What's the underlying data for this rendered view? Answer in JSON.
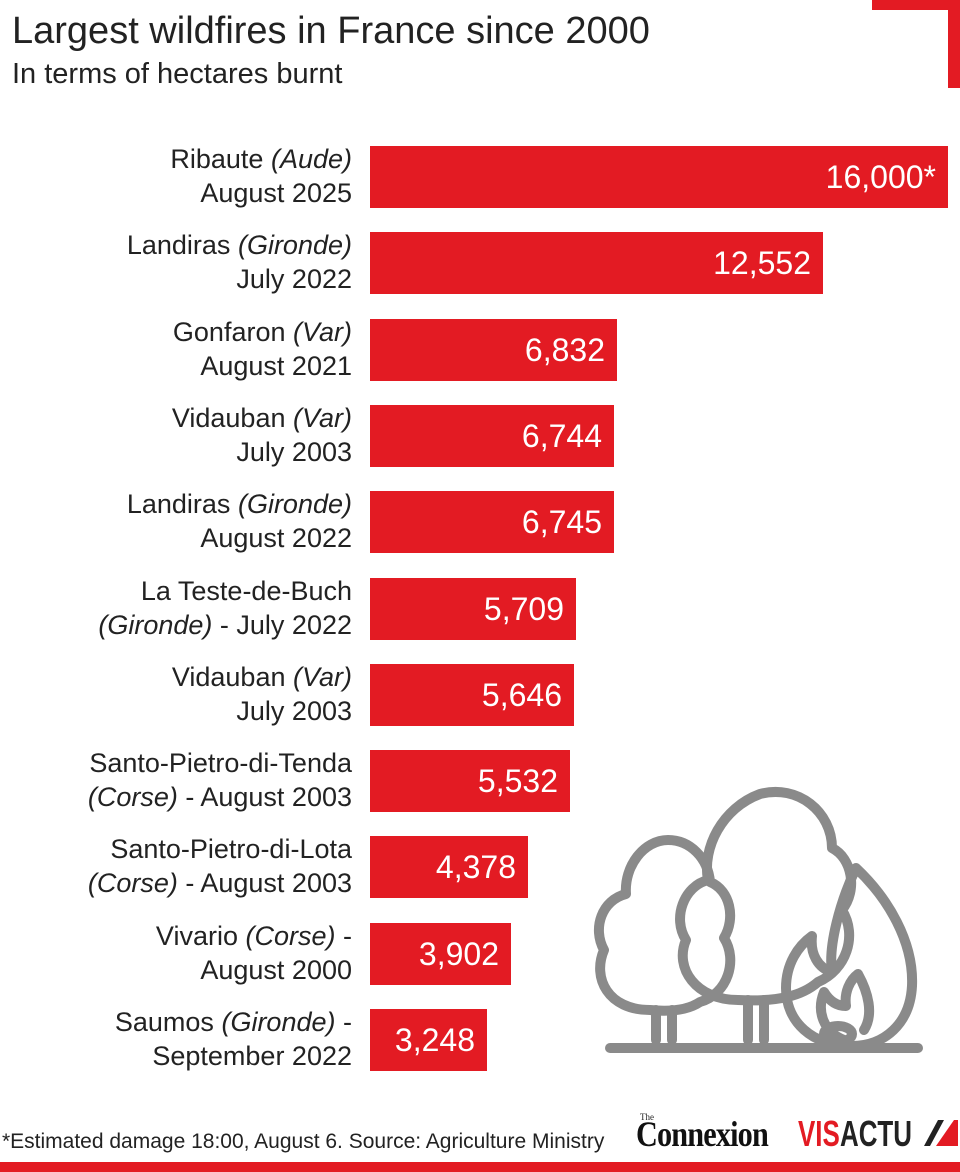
{
  "header": {
    "title": "Largest wildfires in France since 2000",
    "subtitle": "In terms of hectares burnt"
  },
  "chart_data": {
    "type": "bar",
    "orientation": "horizontal",
    "title": "Largest wildfires in France since 2000",
    "subtitle": "In terms of hectares burnt",
    "xlim": [
      0,
      16000
    ],
    "grid": false,
    "legend": "none",
    "bar_color": "#e31b23",
    "rows": [
      {
        "name": "Ribaute",
        "area": "(Aude)",
        "line2": "August 2025",
        "value": 16000,
        "value_label": "16,000*"
      },
      {
        "name": "Landiras",
        "area": "(Gironde)",
        "line2": "July 2022",
        "value": 12552,
        "value_label": "12,552"
      },
      {
        "name": "Gonfaron",
        "area": "(Var)",
        "line2": "August 2021",
        "value": 6832,
        "value_label": "6,832"
      },
      {
        "name": "Vidauban",
        "area": "(Var)",
        "line2": "July 2003",
        "value": 6744,
        "value_label": "6,744"
      },
      {
        "name": "Landiras",
        "area": "(Gironde)",
        "line2": "August 2022",
        "value": 6745,
        "value_label": "6,745"
      },
      {
        "name": "La Teste-de-Buch",
        "area": "",
        "line2_area": "(Gironde)",
        "line2": " - July 2022",
        "value": 5709,
        "value_label": "5,709"
      },
      {
        "name": "Vidauban",
        "area": "(Var)",
        "line2": "July 2003",
        "value": 5646,
        "value_label": "5,646"
      },
      {
        "name": "Santo-Pietro-di-Tenda",
        "area": "",
        "line2_area": "(Corse)",
        "line2": " - August 2003",
        "value": 5532,
        "value_label": "5,532"
      },
      {
        "name": "Santo-Pietro-di-Lota",
        "area": "",
        "line2_area": "(Corse)",
        "line2": " - August 2003",
        "value": 4378,
        "value_label": "4,378"
      },
      {
        "name": "Vivario",
        "area": "(Corse)",
        "suffix": " -",
        "line2": "August 2000",
        "value": 3902,
        "value_label": "3,902"
      },
      {
        "name": "Saumos",
        "area": "(Gironde)",
        "suffix": " -",
        "line2": "September 2022",
        "value": 3248,
        "value_label": "3,248"
      }
    ]
  },
  "illustration": {
    "icon": "forest-fire-icon"
  },
  "footer": {
    "footnote": "*Estimated damage 18:00, August 6. Source: Agriculture Ministry",
    "logo_the": "The",
    "logo_connexion": "Connexion",
    "logo_vis": "VIS",
    "logo_actu": "ACTU"
  },
  "colors": {
    "accent": "#e31b23",
    "text": "#222222",
    "illustration": "#8a8a8a"
  }
}
